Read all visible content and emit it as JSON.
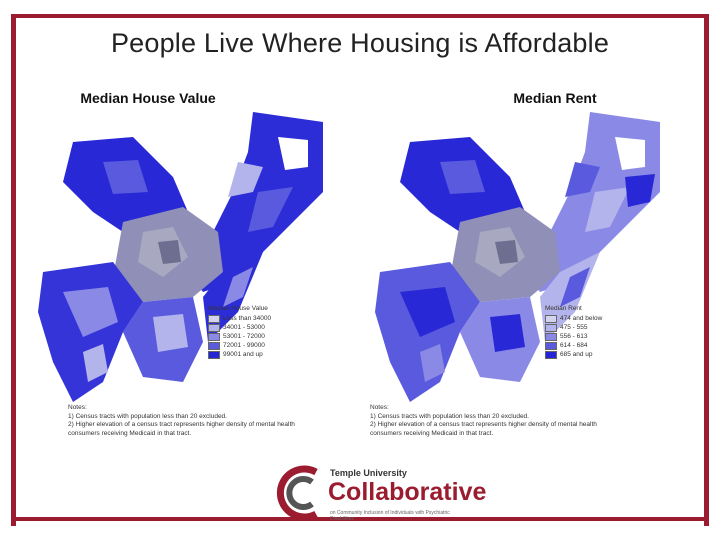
{
  "slide": {
    "title": "People Live Where Housing is Affordable"
  },
  "maps": {
    "left": {
      "title": "Median House Value",
      "legend_title": "Median House Value",
      "legend": [
        {
          "label": "Less than 34000",
          "color": "#d3d3ef"
        },
        {
          "label": "34001 - 53000",
          "color": "#b4b4ec"
        },
        {
          "label": "53001 - 72000",
          "color": "#8a8ae6"
        },
        {
          "label": "72001 - 99000",
          "color": "#5a5ade"
        },
        {
          "label": "99001 and up",
          "color": "#2525d6"
        }
      ],
      "notes_title": "Notes:",
      "notes": [
        "1) Census tracts with population less than 20 excluded.",
        "2) Higher elevation of a census tract represents higher density of mental health",
        "consumers receiving Medicaid in that tract."
      ]
    },
    "right": {
      "title": "Median Rent",
      "legend_title": "Median Rent",
      "legend": [
        {
          "label": "474 and below",
          "color": "#d3d3ef"
        },
        {
          "label": "475 - 555",
          "color": "#b4b4ec"
        },
        {
          "label": "556 - 613",
          "color": "#8a8ae6"
        },
        {
          "label": "614 - 684",
          "color": "#5a5ade"
        },
        {
          "label": "685 and up",
          "color": "#2525d6"
        }
      ],
      "notes_title": "Notes:",
      "notes": [
        "1) Census tracts with population less than 20 excluded.",
        "2) Higher elevation of a census tract represents higher density of mental health",
        "consumers receiving Medicaid in that tract."
      ]
    }
  },
  "logo": {
    "university": "Temple University",
    "name": "Collaborative",
    "tagline": "on Community Inclusion of Individuals with Psychiatric Disabilities"
  },
  "colors": {
    "frame": "#9b1c2e",
    "dark_blue": "#2525d6",
    "mid_blue": "#5a5ade",
    "light_blue": "#b4b4ec",
    "gray": "#9a9aaa"
  }
}
